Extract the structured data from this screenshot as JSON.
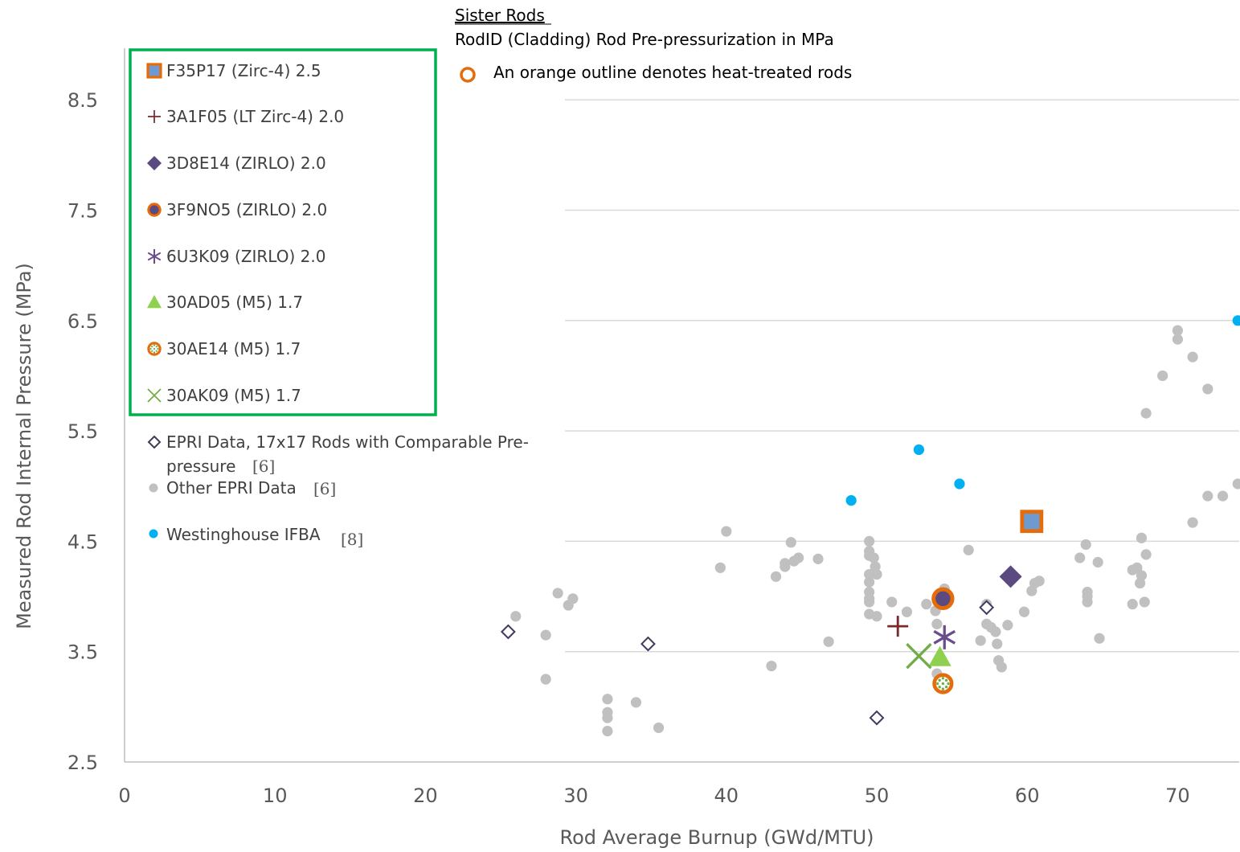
{
  "chart_data": {
    "type": "scatter",
    "title": "",
    "xlabel": "Rod Average Burnup (GWd/MTU)",
    "ylabel": "Measured Rod Internal Pressure (MPa)",
    "xlim": [
      0,
      74
    ],
    "ylim": [
      2.5,
      9.0
    ],
    "x_ticks": [
      "0",
      "10",
      "20",
      "30",
      "40",
      "50",
      "60",
      "70"
    ],
    "y_ticks": [
      "2.5",
      "3.5",
      "4.5",
      "5.5",
      "6.5",
      "7.5",
      "8.5"
    ],
    "grid": "horizontal",
    "header": {
      "title": "Sister Rods",
      "subtitle": "RodID (Cladding) Rod  Pre-pressurization in MPa",
      "note": "An orange outline denotes heat-treated rods"
    },
    "series": [
      {
        "name": "F35P17 (Zirc-4) 2.5",
        "marker": "square-orange-outline",
        "color": "#6f9ad0",
        "points": [
          [
            60.3,
            4.68
          ]
        ]
      },
      {
        "name": "3A1F05 (LT Zirc-4) 2.0",
        "marker": "plus",
        "color": "#7b2a2a",
        "points": [
          [
            51.4,
            3.73
          ]
        ]
      },
      {
        "name": "3D8E14 (ZIRLO) 2.0",
        "marker": "diamond",
        "color": "#5b4a80",
        "points": [
          [
            58.9,
            4.18
          ]
        ]
      },
      {
        "name": "3F9NO5 (ZIRLO) 2.0",
        "marker": "circle-orange-outline",
        "color": "#5b4a80",
        "points": [
          [
            54.4,
            3.98
          ]
        ]
      },
      {
        "name": "6U3K09 (ZIRLO) 2.0",
        "marker": "asterisk",
        "color": "#6a4e8c",
        "points": [
          [
            54.5,
            3.63
          ]
        ]
      },
      {
        "name": "30AD05 (M5) 1.7",
        "marker": "triangle",
        "color": "#8fd14f",
        "points": [
          [
            54.2,
            3.45
          ]
        ]
      },
      {
        "name": "30AE14 (M5) 1.7",
        "marker": "circle-orange-outline-dotted",
        "color": "#70ad47",
        "points": [
          [
            54.4,
            3.21
          ]
        ]
      },
      {
        "name": "30AK09 (M5) 1.7",
        "marker": "x",
        "color": "#70ad47",
        "points": [
          [
            52.8,
            3.46
          ]
        ]
      },
      {
        "name": "EPRI Data, 17x17 Rods with Comparable Pre-pressure",
        "name_line1": "EPRI Data, 17x17 Rods with Comparable Pre-",
        "name_line2": "pressure",
        "ref": "[6]",
        "marker": "diamond-outline",
        "color": "#44385f",
        "points": [
          [
            25.5,
            3.68
          ],
          [
            34.8,
            3.57
          ],
          [
            50.0,
            2.9
          ],
          [
            57.3,
            3.9
          ]
        ]
      },
      {
        "name": "Other EPRI Data",
        "ref": "[6]",
        "marker": "circle",
        "color": "#c0c0c0",
        "points": [
          [
            26.0,
            3.82
          ],
          [
            28.0,
            3.65
          ],
          [
            28.0,
            3.25
          ],
          [
            28.8,
            4.03
          ],
          [
            29.5,
            3.92
          ],
          [
            29.8,
            3.98
          ],
          [
            32.1,
            3.07
          ],
          [
            32.1,
            2.95
          ],
          [
            32.1,
            2.9
          ],
          [
            32.1,
            2.78
          ],
          [
            34.0,
            3.04
          ],
          [
            35.5,
            2.81
          ],
          [
            39.6,
            4.26
          ],
          [
            40.0,
            4.59
          ],
          [
            43.0,
            3.37
          ],
          [
            43.3,
            4.18
          ],
          [
            43.9,
            4.3
          ],
          [
            43.9,
            4.27
          ],
          [
            44.3,
            4.49
          ],
          [
            44.5,
            4.32
          ],
          [
            44.8,
            4.35
          ],
          [
            46.1,
            4.34
          ],
          [
            46.8,
            3.59
          ],
          [
            49.5,
            4.5
          ],
          [
            49.5,
            4.41
          ],
          [
            49.5,
            4.37
          ],
          [
            49.5,
            4.2
          ],
          [
            49.5,
            4.13
          ],
          [
            49.5,
            4.04
          ],
          [
            49.5,
            3.98
          ],
          [
            49.5,
            3.95
          ],
          [
            49.5,
            3.84
          ],
          [
            49.8,
            4.35
          ],
          [
            49.9,
            4.27
          ],
          [
            50.0,
            4.2
          ],
          [
            50.0,
            3.82
          ],
          [
            51.0,
            3.95
          ],
          [
            52.0,
            3.86
          ],
          [
            53.3,
            3.93
          ],
          [
            53.9,
            3.87
          ],
          [
            54.0,
            3.75
          ],
          [
            54.3,
            3.99
          ],
          [
            54.5,
            4.07
          ],
          [
            54.0,
            3.3
          ],
          [
            56.1,
            4.42
          ],
          [
            56.9,
            3.6
          ],
          [
            57.3,
            3.93
          ],
          [
            57.3,
            3.75
          ],
          [
            57.6,
            3.72
          ],
          [
            57.9,
            3.68
          ],
          [
            58.0,
            3.57
          ],
          [
            58.1,
            3.42
          ],
          [
            58.3,
            3.36
          ],
          [
            58.7,
            3.74
          ],
          [
            59.8,
            3.86
          ],
          [
            60.3,
            4.05
          ],
          [
            60.5,
            4.12
          ],
          [
            60.8,
            4.14
          ],
          [
            63.5,
            4.35
          ],
          [
            63.9,
            4.47
          ],
          [
            64.0,
            4.04
          ],
          [
            64.0,
            4.0
          ],
          [
            64.0,
            3.95
          ],
          [
            64.7,
            4.31
          ],
          [
            64.8,
            3.62
          ],
          [
            67.0,
            4.24
          ],
          [
            67.0,
            3.93
          ],
          [
            67.3,
            4.26
          ],
          [
            67.5,
            4.12
          ],
          [
            67.6,
            4.19
          ],
          [
            67.6,
            4.53
          ],
          [
            67.8,
            3.95
          ],
          [
            67.9,
            4.38
          ],
          [
            67.9,
            5.66
          ],
          [
            69.0,
            6.0
          ],
          [
            70.0,
            6.41
          ],
          [
            70.0,
            6.33
          ],
          [
            71.0,
            6.17
          ],
          [
            71.0,
            4.67
          ],
          [
            72.0,
            5.88
          ],
          [
            72.0,
            4.91
          ],
          [
            73.0,
            4.91
          ],
          [
            74.0,
            5.02
          ]
        ]
      },
      {
        "name": "Westinghouse IFBA",
        "ref": "[8]",
        "marker": "circle",
        "color": "#00b0f0",
        "points": [
          [
            48.3,
            4.87
          ],
          [
            52.8,
            5.33
          ],
          [
            55.5,
            5.02
          ],
          [
            74.0,
            6.5
          ]
        ]
      }
    ]
  }
}
